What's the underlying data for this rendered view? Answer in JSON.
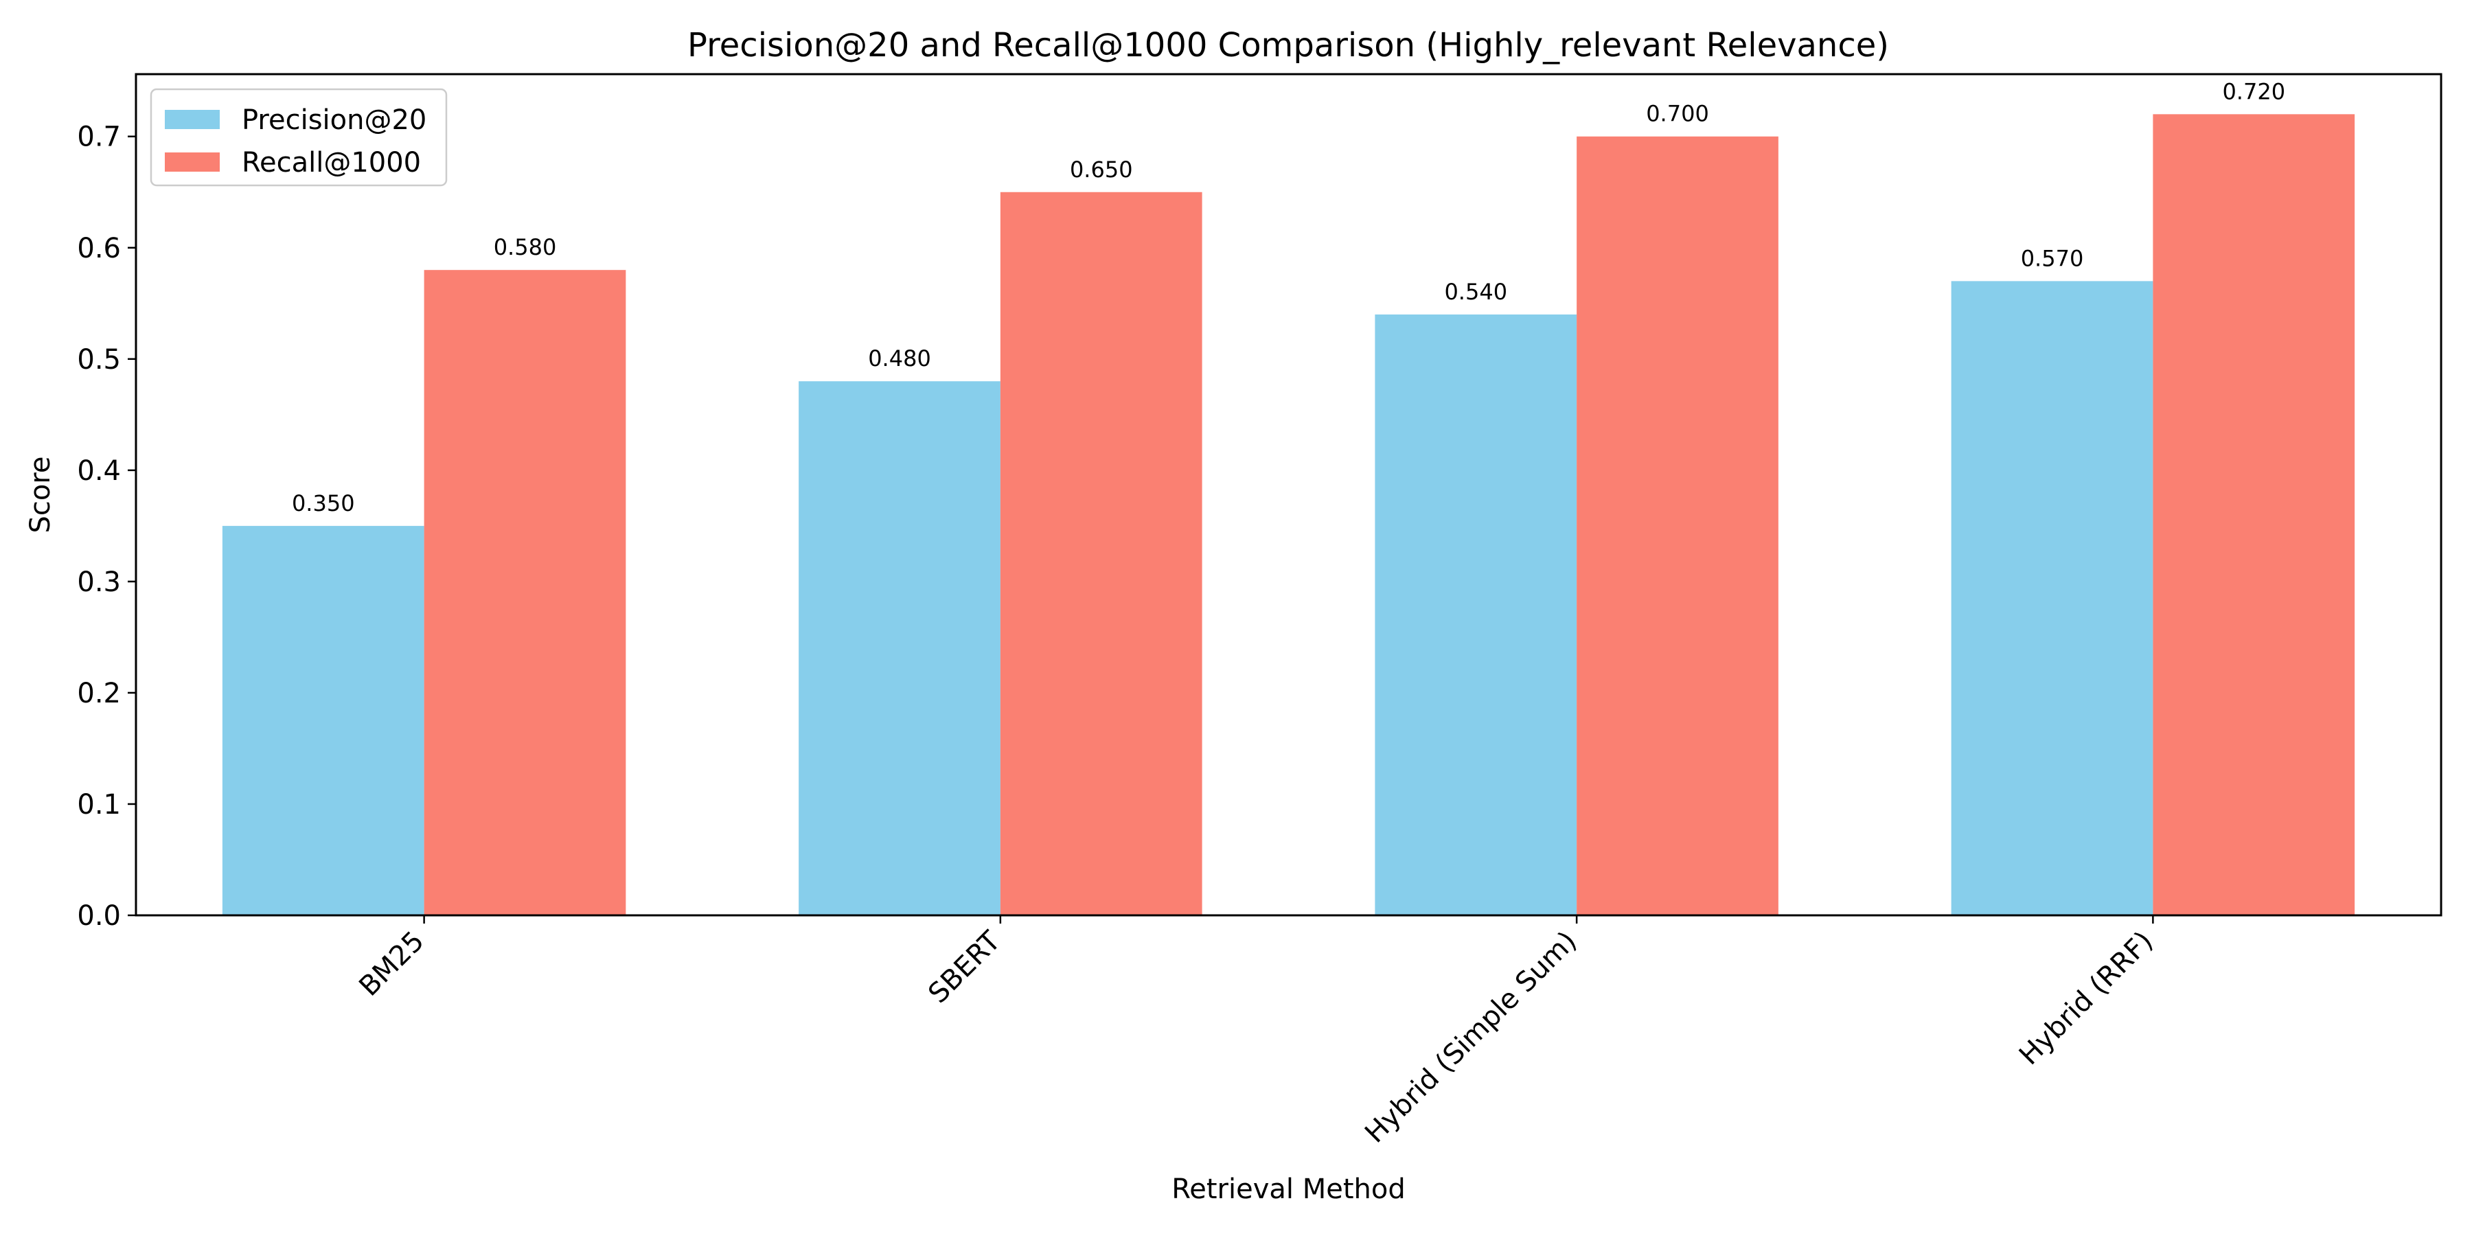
{
  "chart_data": {
    "type": "bar",
    "title": "Precision@20 and Recall@1000 Comparison (Highly_relevant Relevance)",
    "xlabel": "Retrieval Method",
    "ylabel": "Score",
    "categories": [
      "BM25",
      "SBERT",
      "Hybrid (Simple Sum)",
      "Hybrid (RRF)"
    ],
    "series": [
      {
        "name": "Precision@20",
        "values": [
          0.35,
          0.48,
          0.54,
          0.57
        ],
        "labels": [
          "0.350",
          "0.480",
          "0.540",
          "0.570"
        ],
        "color": "#87CEEB"
      },
      {
        "name": "Recall@1000",
        "values": [
          0.58,
          0.65,
          0.7,
          0.72
        ],
        "labels": [
          "0.580",
          "0.650",
          "0.700",
          "0.720"
        ],
        "color": "#FA8072"
      }
    ],
    "yticks": [
      "0.0",
      "0.1",
      "0.2",
      "0.3",
      "0.4",
      "0.5",
      "0.6",
      "0.7"
    ],
    "ylim": [
      0,
      0.756
    ],
    "grid": false,
    "legend_position": "top-left"
  }
}
